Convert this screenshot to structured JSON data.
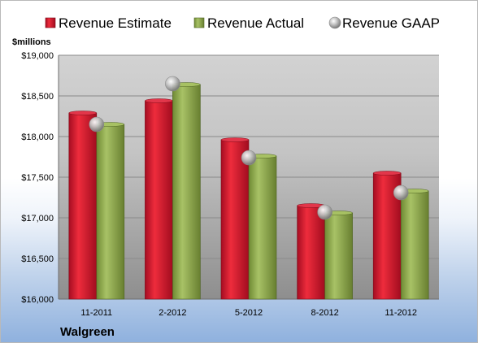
{
  "chart_data": {
    "type": "bar",
    "title": "",
    "ylabel": "$millions",
    "xlabel": "",
    "company": "Walgreen",
    "categories": [
      "11-2011",
      "2-2012",
      "5-2012",
      "8-2012",
      "11-2012"
    ],
    "ylim": [
      16000,
      19000
    ],
    "yticks": [
      16000,
      16500,
      17000,
      17500,
      18000,
      18500,
      19000
    ],
    "ytick_labels": [
      "$16,000",
      "$16,500",
      "$17,000",
      "$17,500",
      "$18,000",
      "$18,500",
      "$19,000"
    ],
    "grid": true,
    "legend_position": "top",
    "series": [
      {
        "name": "Revenue Estimate",
        "kind": "bar",
        "color": "#c8102e",
        "values": [
          18290,
          18440,
          17960,
          17150,
          17550
        ]
      },
      {
        "name": "Revenue Actual",
        "kind": "bar",
        "color": "#8aa64a",
        "values": [
          18150,
          18640,
          17760,
          17060,
          17330
        ]
      },
      {
        "name": "Revenue GAAP",
        "kind": "marker",
        "color": "#b0b0b0",
        "values": [
          18150,
          18650,
          17740,
          17070,
          17310
        ]
      }
    ]
  }
}
